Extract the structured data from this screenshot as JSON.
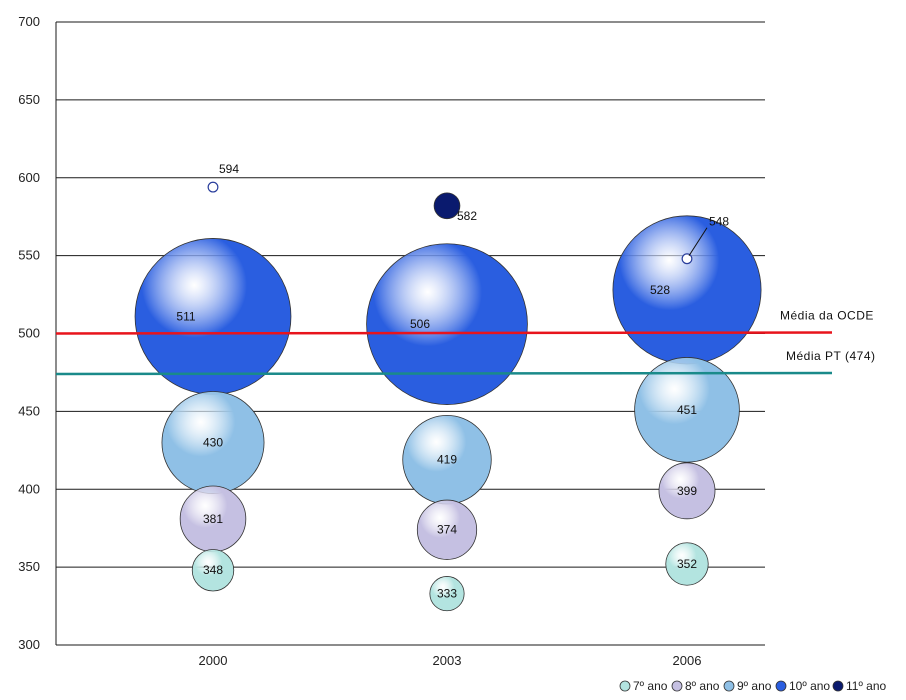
{
  "chart_data": {
    "type": "bubble",
    "title": "",
    "xlabel": "",
    "ylabel": "",
    "ylim": [
      300,
      700
    ],
    "yticks": [
      300,
      350,
      400,
      450,
      500,
      550,
      600,
      650,
      700
    ],
    "categories": [
      "2000",
      "2003",
      "2006"
    ],
    "grid": true,
    "legend_position": "bottom-right",
    "series": [
      {
        "name": "7º ano",
        "color": "#b3e4e0",
        "values": [
          348,
          333,
          352
        ],
        "sizes": [
          2.2,
          1.5,
          2.3
        ]
      },
      {
        "name": "8º ano",
        "color": "#c5c0e2",
        "values": [
          381,
          374,
          399
        ],
        "sizes": [
          5.5,
          4.5,
          4.0
        ]
      },
      {
        "name": "9º ano",
        "color": "#8fc0e6",
        "values": [
          430,
          419,
          451
        ],
        "sizes": [
          13.3,
          10.0,
          14.0
        ]
      },
      {
        "name": "10º ano",
        "color": "#2a5ee0",
        "values": [
          511,
          506,
          528
        ],
        "sizes": [
          31.0,
          33.0,
          28.0
        ]
      },
      {
        "name": "11º ano",
        "color": "#0a1a6e",
        "values": [
          594,
          582,
          548
        ],
        "sizes": [
          0.12,
          0.85,
          0.12
        ]
      }
    ],
    "reference_lines": [
      {
        "label": "Média da OCDE",
        "value": 500,
        "color": "#e8141c"
      },
      {
        "label": "Média PT (474)",
        "value": 474,
        "color": "#1a8a8a"
      }
    ],
    "data_labels": [
      [
        "348",
        "333",
        "352"
      ],
      [
        "381",
        "374",
        "399"
      ],
      [
        "430",
        "419",
        "451"
      ],
      [
        "511",
        "506",
        "528"
      ],
      [
        "594",
        "582",
        "548"
      ]
    ]
  }
}
